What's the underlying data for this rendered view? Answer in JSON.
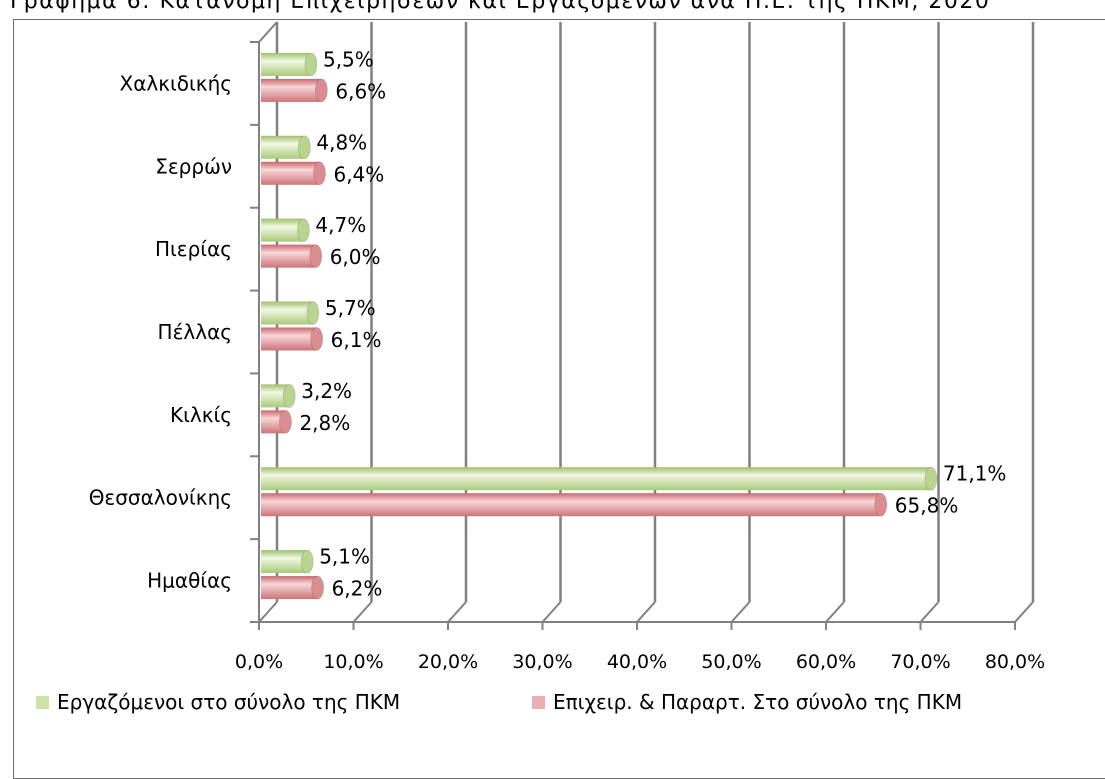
{
  "title": "Γράφημα 6: Κατανομή Επιχειρήσεων και Εργαζομένων ανά Π.Ε. της ΠΚΜ, 2020",
  "colors": {
    "employees": "#cfe3a8",
    "businesses": "#e8a4a8",
    "axis": "#808080",
    "grid": "#808080"
  },
  "chart_data": {
    "type": "bar",
    "orientation": "horizontal",
    "categories": [
      "Χαλκιδικής",
      "Σερρών",
      "Πιερίας",
      "Πέλλας",
      "Κιλκίς",
      "Θεσσαλονίκης",
      "Ημαθίας"
    ],
    "series": [
      {
        "name": "Εργαζόμενοι στο σύνολο της ΠΚΜ",
        "values": [
          5.5,
          4.8,
          4.7,
          5.7,
          3.2,
          71.1,
          5.1
        ],
        "labels": [
          "5,5%",
          "4,8%",
          "4,7%",
          "5,7%",
          "3,2%",
          "71,1%",
          "5,1%"
        ]
      },
      {
        "name": "Επιχειρ. & Παραρτ. Στο σύνολο  της ΠΚΜ",
        "values": [
          6.6,
          6.4,
          6.0,
          6.1,
          2.8,
          65.8,
          6.2
        ],
        "labels": [
          "6,6%",
          "6,4%",
          "6,0%",
          "6,1%",
          "2,8%",
          "65,8%",
          "6,2%"
        ]
      }
    ],
    "xlim": [
      0,
      80
    ],
    "xticks": [
      0,
      10,
      20,
      30,
      40,
      50,
      60,
      70,
      80
    ],
    "xtick_labels": [
      "0,0%",
      "10,0%",
      "20,0%",
      "30,0%",
      "40,0%",
      "50,0%",
      "60,0%",
      "70,0%",
      "80,0%"
    ],
    "grid": true,
    "legend_position": "bottom",
    "style": "3d-cylinder"
  }
}
